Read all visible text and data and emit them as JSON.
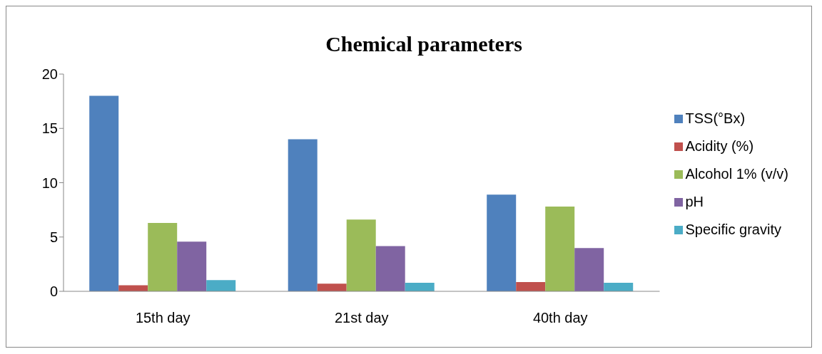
{
  "chart_data": {
    "type": "bar",
    "title": "Chemical parameters",
    "categories": [
      "15th day",
      "21st day",
      "40th day"
    ],
    "series": [
      {
        "name": "TSS(°Bx)",
        "color": "#4f81bd",
        "values": [
          18.0,
          14.0,
          8.9
        ]
      },
      {
        "name": "Acidity (%)",
        "color": "#c0504d",
        "values": [
          0.56,
          0.7,
          0.85
        ]
      },
      {
        "name": "Alcohol 1% (v/v)",
        "color": "#9bbb59",
        "values": [
          6.3,
          6.6,
          7.8
        ]
      },
      {
        "name": "pH",
        "color": "#8064a2",
        "values": [
          4.57,
          4.16,
          3.98
        ]
      },
      {
        "name": "Specific gravity",
        "color": "#4bacc6",
        "values": [
          1.04,
          0.78,
          0.78
        ]
      }
    ],
    "ylim": [
      0,
      20
    ],
    "yticks": [
      0,
      5,
      10,
      15,
      20
    ],
    "grid": false,
    "legend": "right"
  }
}
